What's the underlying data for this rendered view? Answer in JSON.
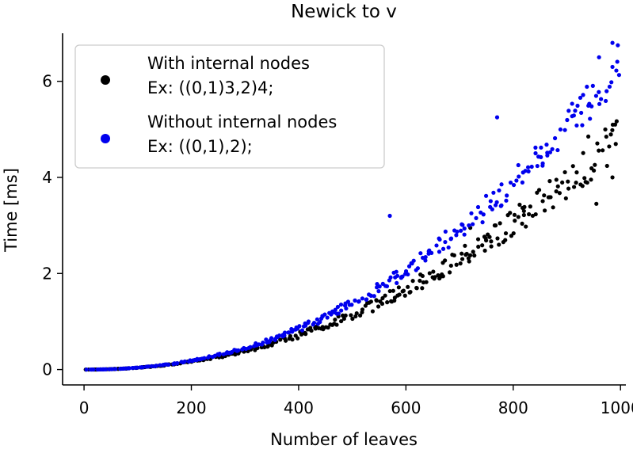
{
  "chart_data": {
    "type": "scatter",
    "title": "Newick to v",
    "xlabel": "Number of leaves",
    "ylabel": "Time [ms]",
    "xlim": [
      -40,
      1010
    ],
    "ylim": [
      -0.32,
      7.0
    ],
    "xticks": [
      0,
      200,
      400,
      600,
      800,
      1000
    ],
    "yticks": [
      0,
      2,
      4,
      6
    ],
    "grid": false,
    "legend_position": "top-left",
    "series": [
      {
        "name": "With internal nodes",
        "example": "Ex:  ((0,1)3,2)4;",
        "color": "#000000",
        "model": {
          "x_start": 5,
          "x_end": 995,
          "x_step": 5,
          "coef": 2.45e-06,
          "exponent": 2.1,
          "spread": 0.09
        },
        "highlight_points": [
          [
            990,
            5.1
          ],
          [
            940,
            4.85
          ],
          [
            985,
            4.0
          ],
          [
            955,
            3.45
          ],
          [
            720,
            2.95
          ],
          [
            820,
            3.3
          ]
        ]
      },
      {
        "name": "Without internal nodes",
        "example": "Ex:  ((0,1),2);",
        "color": "#0000ee",
        "model": {
          "x_start": 5,
          "x_end": 995,
          "x_step": 5,
          "coef": 1.6e-06,
          "exponent": 2.2,
          "spread": 0.075
        },
        "highlight_points": [
          [
            985,
            6.8
          ],
          [
            995,
            6.75
          ],
          [
            960,
            6.5
          ],
          [
            985,
            6.3
          ],
          [
            770,
            5.25
          ],
          [
            570,
            3.2
          ]
        ]
      }
    ]
  }
}
